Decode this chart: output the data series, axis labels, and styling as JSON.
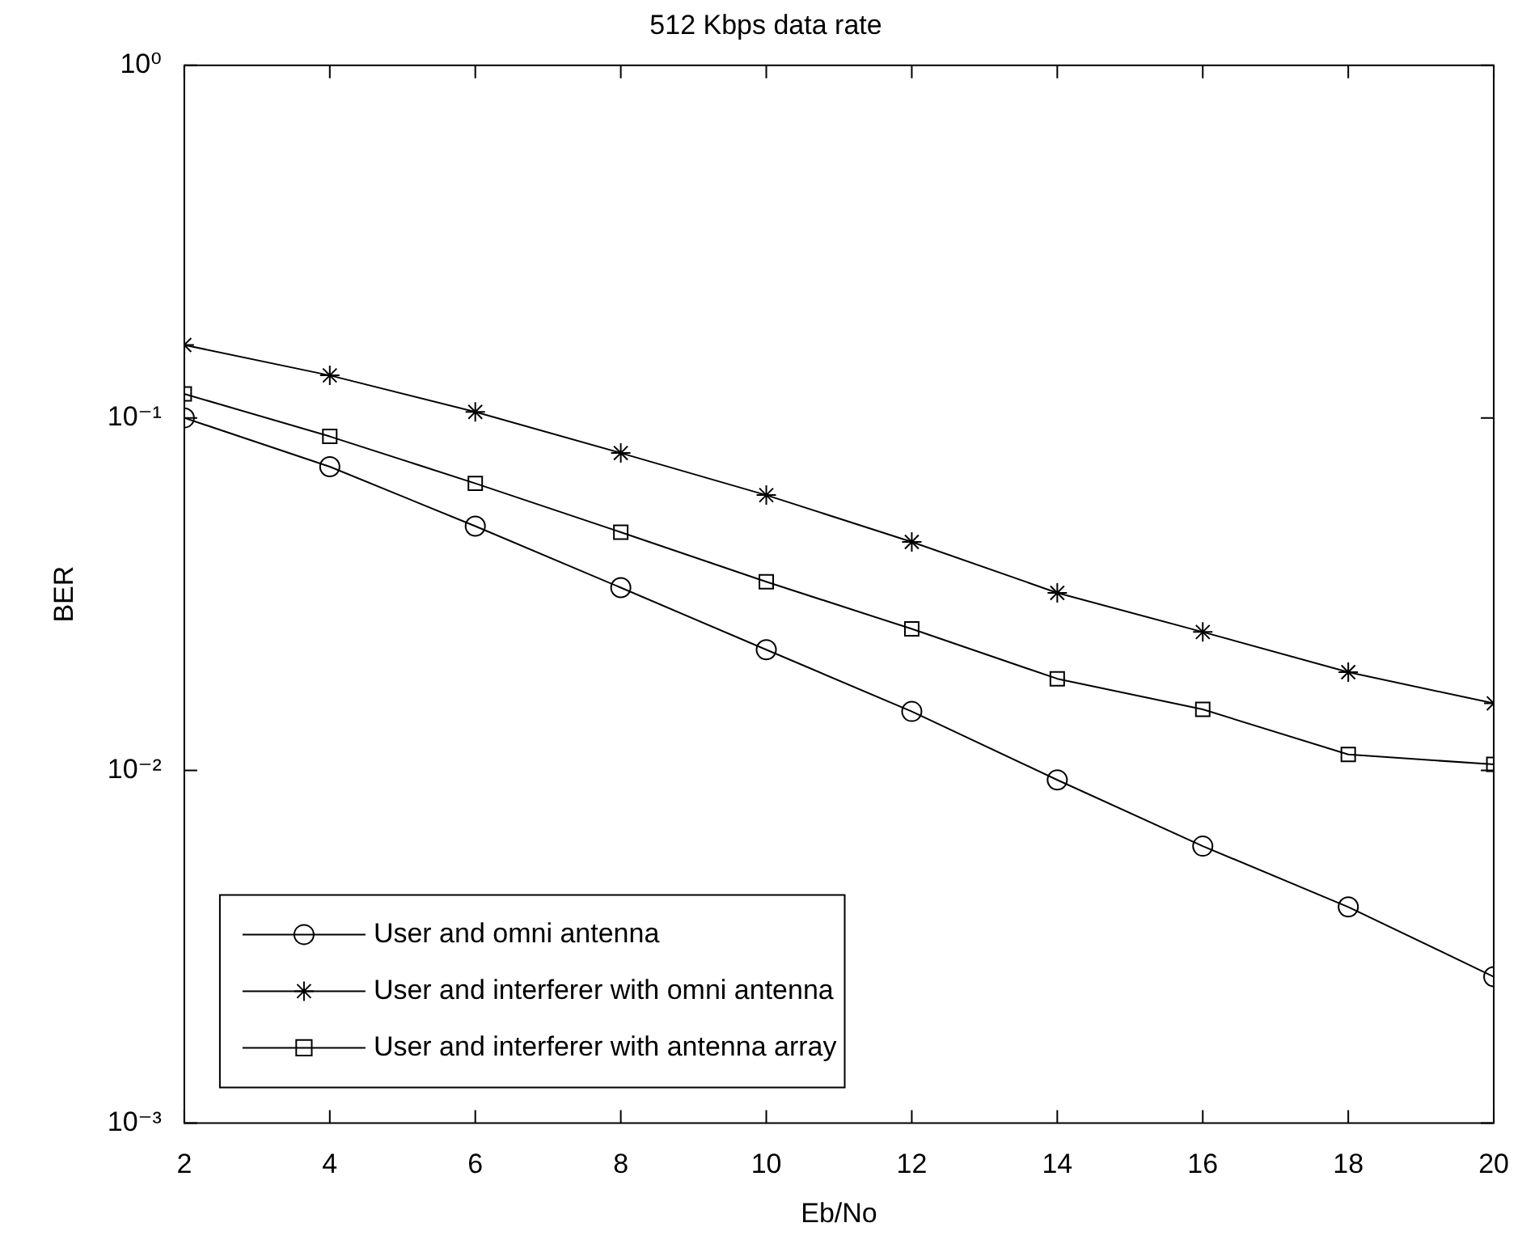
{
  "chart_data": {
    "type": "line",
    "title": "512 Kbps data rate",
    "xlabel": "Eb/No",
    "ylabel": "BER",
    "x": [
      2,
      4,
      6,
      8,
      10,
      12,
      14,
      16,
      18,
      20
    ],
    "series": [
      {
        "name": "User and omni antenna",
        "color": "#000000",
        "marker": "circle",
        "values": [
          0.1,
          0.0727,
          0.0493,
          0.033,
          0.022,
          0.0147,
          0.0094,
          0.0061,
          0.0041,
          0.0026
        ]
      },
      {
        "name": "User and interferer with omni antenna",
        "color": "#000000",
        "marker": "cross",
        "values": [
          0.161,
          0.132,
          0.104,
          0.0795,
          0.0604,
          0.0445,
          0.0319,
          0.0247,
          0.019,
          0.0155
        ]
      },
      {
        "name": "User and interferer with antenna array",
        "color": "#000000",
        "marker": "square",
        "values": [
          0.117,
          0.0886,
          0.0652,
          0.0474,
          0.0343,
          0.0252,
          0.0182,
          0.0149,
          0.0111,
          0.0104
        ]
      }
    ],
    "log": "y",
    "xlim": [
      2,
      20
    ],
    "xticks": [
      2,
      4,
      6,
      8,
      10,
      12,
      14,
      16,
      18,
      20
    ],
    "ylim": [
      0.001,
      1
    ],
    "yticks": [
      {
        "value": 0.001,
        "label": "10⁻³"
      },
      {
        "value": 0.01,
        "label": "10⁻²"
      },
      {
        "value": 0.1,
        "label": "10⁻¹"
      },
      {
        "value": 1,
        "label": "10⁰"
      }
    ],
    "grid": false,
    "legend": "bottom left",
    "line_style": "solid"
  }
}
